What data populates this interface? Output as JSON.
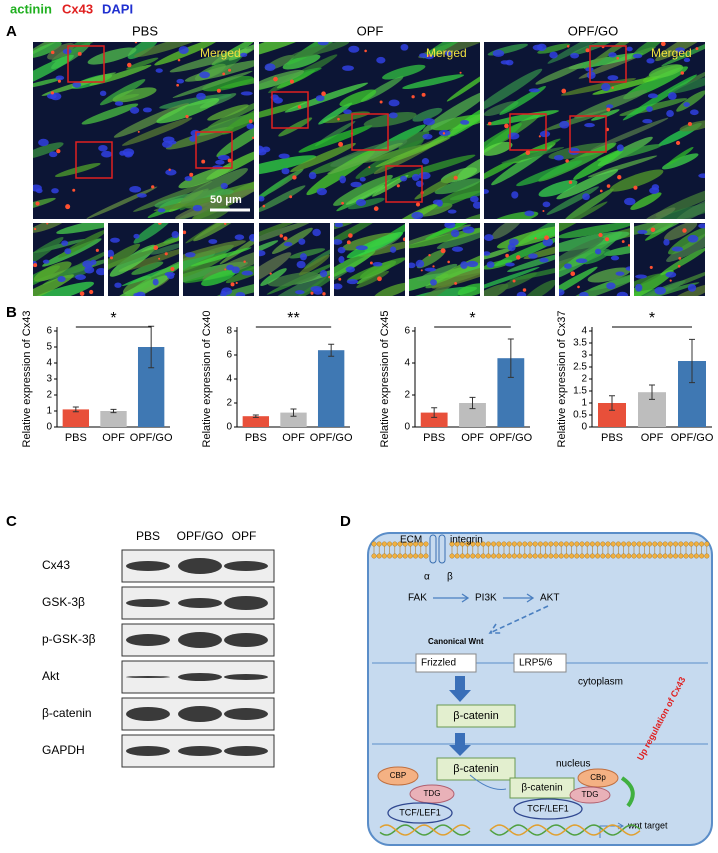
{
  "panel_a": {
    "label": "A",
    "legend": [
      "actinin",
      "Cx43",
      "DAPI"
    ],
    "columns": [
      "PBS",
      "OPF",
      "OPF/GO"
    ],
    "overlay": "Merged",
    "scale_bar": "50 μm"
  },
  "panel_b": {
    "label": "B"
  },
  "chart_data": [
    {
      "type": "bar",
      "ylabel": "Relative expression of Cx43",
      "categories": [
        "PBS",
        "OPF",
        "OPF/GO"
      ],
      "values": [
        1.1,
        1.0,
        5.0
      ],
      "error": [
        0.15,
        0.1,
        1.3
      ],
      "colors": [
        "#e8503a",
        "#bdbdbd",
        "#3f78b3"
      ],
      "ylim": [
        0,
        6
      ],
      "yticks": [
        0,
        1,
        2,
        3,
        4,
        5,
        6
      ],
      "annotation": "*"
    },
    {
      "type": "bar",
      "ylabel": "Relative expression of Cx40",
      "categories": [
        "PBS",
        "OPF",
        "OPF/GO"
      ],
      "values": [
        0.9,
        1.2,
        6.4
      ],
      "error": [
        0.1,
        0.3,
        0.5
      ],
      "colors": [
        "#e8503a",
        "#bdbdbd",
        "#3f78b3"
      ],
      "ylim": [
        0,
        8
      ],
      "yticks": [
        0,
        2,
        4,
        6,
        8
      ],
      "annotation": "**"
    },
    {
      "type": "bar",
      "ylabel": "Relative expression of Cx45",
      "categories": [
        "PBS",
        "OPF",
        "OPF/GO"
      ],
      "values": [
        0.9,
        1.5,
        4.3
      ],
      "error": [
        0.3,
        0.35,
        1.2
      ],
      "colors": [
        "#e8503a",
        "#bdbdbd",
        "#3f78b3"
      ],
      "ylim": [
        0,
        6
      ],
      "yticks": [
        0,
        2,
        4,
        6
      ],
      "annotation": "*"
    },
    {
      "type": "bar",
      "ylabel": "Relative expression of Cx37",
      "categories": [
        "PBS",
        "OPF",
        "OPF/GO"
      ],
      "values": [
        1.0,
        1.45,
        2.75
      ],
      "error": [
        0.3,
        0.3,
        0.9
      ],
      "colors": [
        "#e8503a",
        "#bdbdbd",
        "#3f78b3"
      ],
      "ylim": [
        0,
        4
      ],
      "yticks": [
        0,
        0.5,
        1,
        1.5,
        2,
        2.5,
        3,
        3.5,
        4
      ],
      "annotation": "*"
    }
  ],
  "panel_c": {
    "label": "C",
    "lanes": [
      "PBS",
      "OPF/GO",
      "OPF"
    ],
    "rows": [
      "Cx43",
      "GSK-3β",
      "p-GSK-3β",
      "Akt",
      "β-catenin",
      "GAPDH"
    ]
  },
  "panel_d": {
    "label": "D",
    "ecm": "ECM",
    "integrin": "integrin",
    "alpha": "α",
    "beta": "β",
    "fak": "FAK",
    "pi3k": "PI3K",
    "akt": "AKT",
    "wnt": "Canonical Wnt",
    "frizzled": "Frizzled",
    "lrp": "LRP5/6",
    "cytoplasm": "cytoplasm",
    "catenin_cyto": "β-catenin",
    "catenin_nuc": "β-catenin",
    "nucleus": "nucleus",
    "cbp_left": "CBP",
    "tdg_left": "TDG",
    "tcf_left": "TCF/LEF1",
    "catenin_complex": "β-catenin",
    "cbp_right": "CBp",
    "tdg_right": "TDG",
    "tcf_right": "TCF/LEF1",
    "upregulation": "Up regulation of Cx43",
    "wnt_target": "wnt target"
  }
}
